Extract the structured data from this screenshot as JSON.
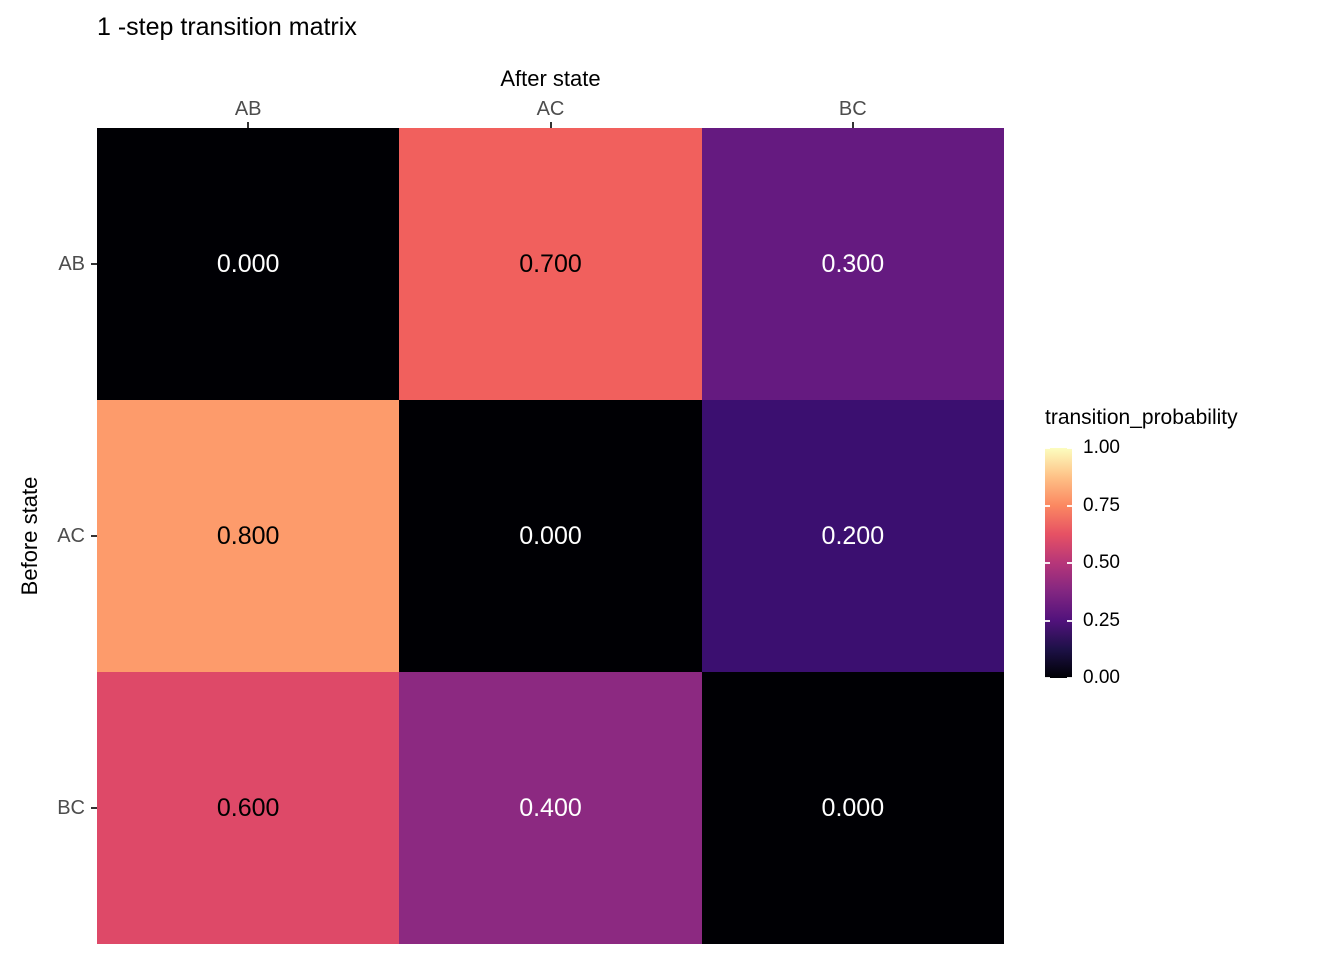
{
  "chart_data": {
    "type": "heatmap",
    "title": "1 -step transition matrix",
    "xlabel": "After state",
    "ylabel": "Before state",
    "x_categories": [
      "AB",
      "AC",
      "BC"
    ],
    "y_categories": [
      "AB",
      "AC",
      "BC"
    ],
    "values": [
      [
        0.0,
        0.7,
        0.3
      ],
      [
        0.8,
        0.0,
        0.2
      ],
      [
        0.6,
        0.4,
        0.0
      ]
    ],
    "cells": [
      [
        {
          "label": "0.000",
          "fill": "#000004",
          "text_color": "#FFFFFF"
        },
        {
          "label": "0.700",
          "fill": "#F1605D",
          "text_color": "#000000"
        },
        {
          "label": "0.300",
          "fill": "#651A80",
          "text_color": "#FFFFFF"
        }
      ],
      [
        {
          "label": "0.800",
          "fill": "#FD9B6B",
          "text_color": "#000000"
        },
        {
          "label": "0.000",
          "fill": "#000004",
          "text_color": "#FFFFFF"
        },
        {
          "label": "0.200",
          "fill": "#3B0F70",
          "text_color": "#FFFFFF"
        }
      ],
      [
        {
          "label": "0.600",
          "fill": "#DE4968",
          "text_color": "#000000"
        },
        {
          "label": "0.400",
          "fill": "#8C2981",
          "text_color": "#FFFFFF"
        },
        {
          "label": "0.000",
          "fill": "#000004",
          "text_color": "#FFFFFF"
        }
      ]
    ],
    "legend": {
      "title": "transition_probability",
      "tick_labels": [
        "1.00",
        "0.75",
        "0.50",
        "0.25",
        "0.00"
      ],
      "range": [
        0,
        1
      ],
      "position": "right",
      "colormap": "magma",
      "gradient_stops": [
        "#000004",
        "#1D1147",
        "#51127C",
        "#822681",
        "#B63679",
        "#E65164",
        "#FB8861",
        "#FEC287",
        "#FCFDBF"
      ]
    },
    "grid": "off",
    "axis_tick_label_color": "#4D4D4D",
    "axis_tick_mark_color": "#333333"
  }
}
